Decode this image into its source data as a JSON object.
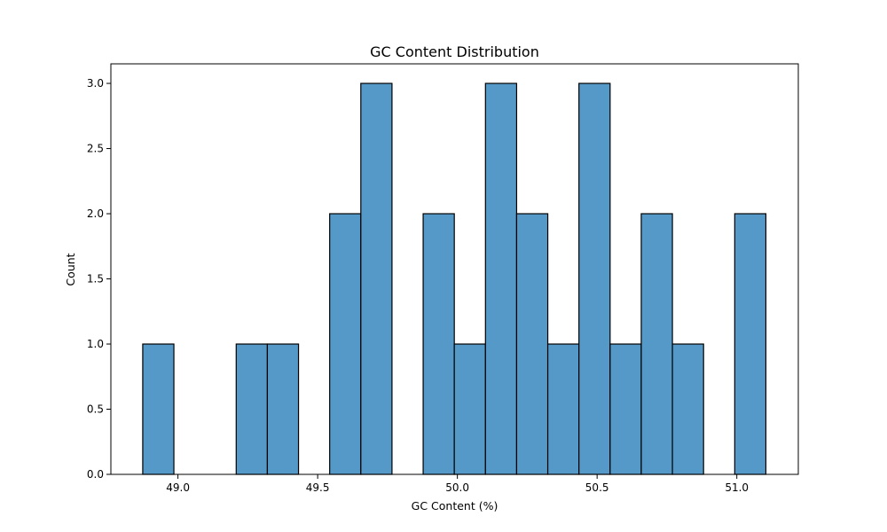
{
  "chart_data": {
    "type": "bar",
    "title": "GC Content Distribution",
    "xlabel": "GC Content (%)",
    "ylabel": "Count",
    "bar_color": "#5499c7",
    "edge_color": "#000000",
    "bin_width": 0.1115,
    "bins": [
      {
        "start": 48.874,
        "count": 1
      },
      {
        "start": 48.9855,
        "count": 0
      },
      {
        "start": 49.097,
        "count": 0
      },
      {
        "start": 49.2085,
        "count": 1
      },
      {
        "start": 49.32,
        "count": 1
      },
      {
        "start": 49.4315,
        "count": 0
      },
      {
        "start": 49.543,
        "count": 2
      },
      {
        "start": 49.6545,
        "count": 3
      },
      {
        "start": 49.766,
        "count": 0
      },
      {
        "start": 49.8775,
        "count": 2
      },
      {
        "start": 49.989,
        "count": 1
      },
      {
        "start": 50.1005,
        "count": 3
      },
      {
        "start": 50.212,
        "count": 2
      },
      {
        "start": 50.3235,
        "count": 1
      },
      {
        "start": 50.435,
        "count": 3
      },
      {
        "start": 50.5465,
        "count": 1
      },
      {
        "start": 50.658,
        "count": 2
      },
      {
        "start": 50.7695,
        "count": 1
      },
      {
        "start": 50.881,
        "count": 0
      },
      {
        "start": 50.9925,
        "count": 2
      }
    ],
    "xlim": [
      48.76,
      51.22
    ],
    "ylim": [
      0,
      3.15
    ],
    "xticks": [
      49.0,
      49.5,
      50.0,
      50.5,
      51.0
    ],
    "xtick_labels": [
      "49.0",
      "49.5",
      "50.0",
      "50.5",
      "51.0"
    ],
    "yticks": [
      0,
      0.5,
      1.0,
      1.5,
      2.0,
      2.5,
      3.0
    ],
    "ytick_labels": [
      "0.0",
      "0.5",
      "1.0",
      "1.5",
      "2.0",
      "2.5",
      "3.0"
    ],
    "grid": false
  }
}
